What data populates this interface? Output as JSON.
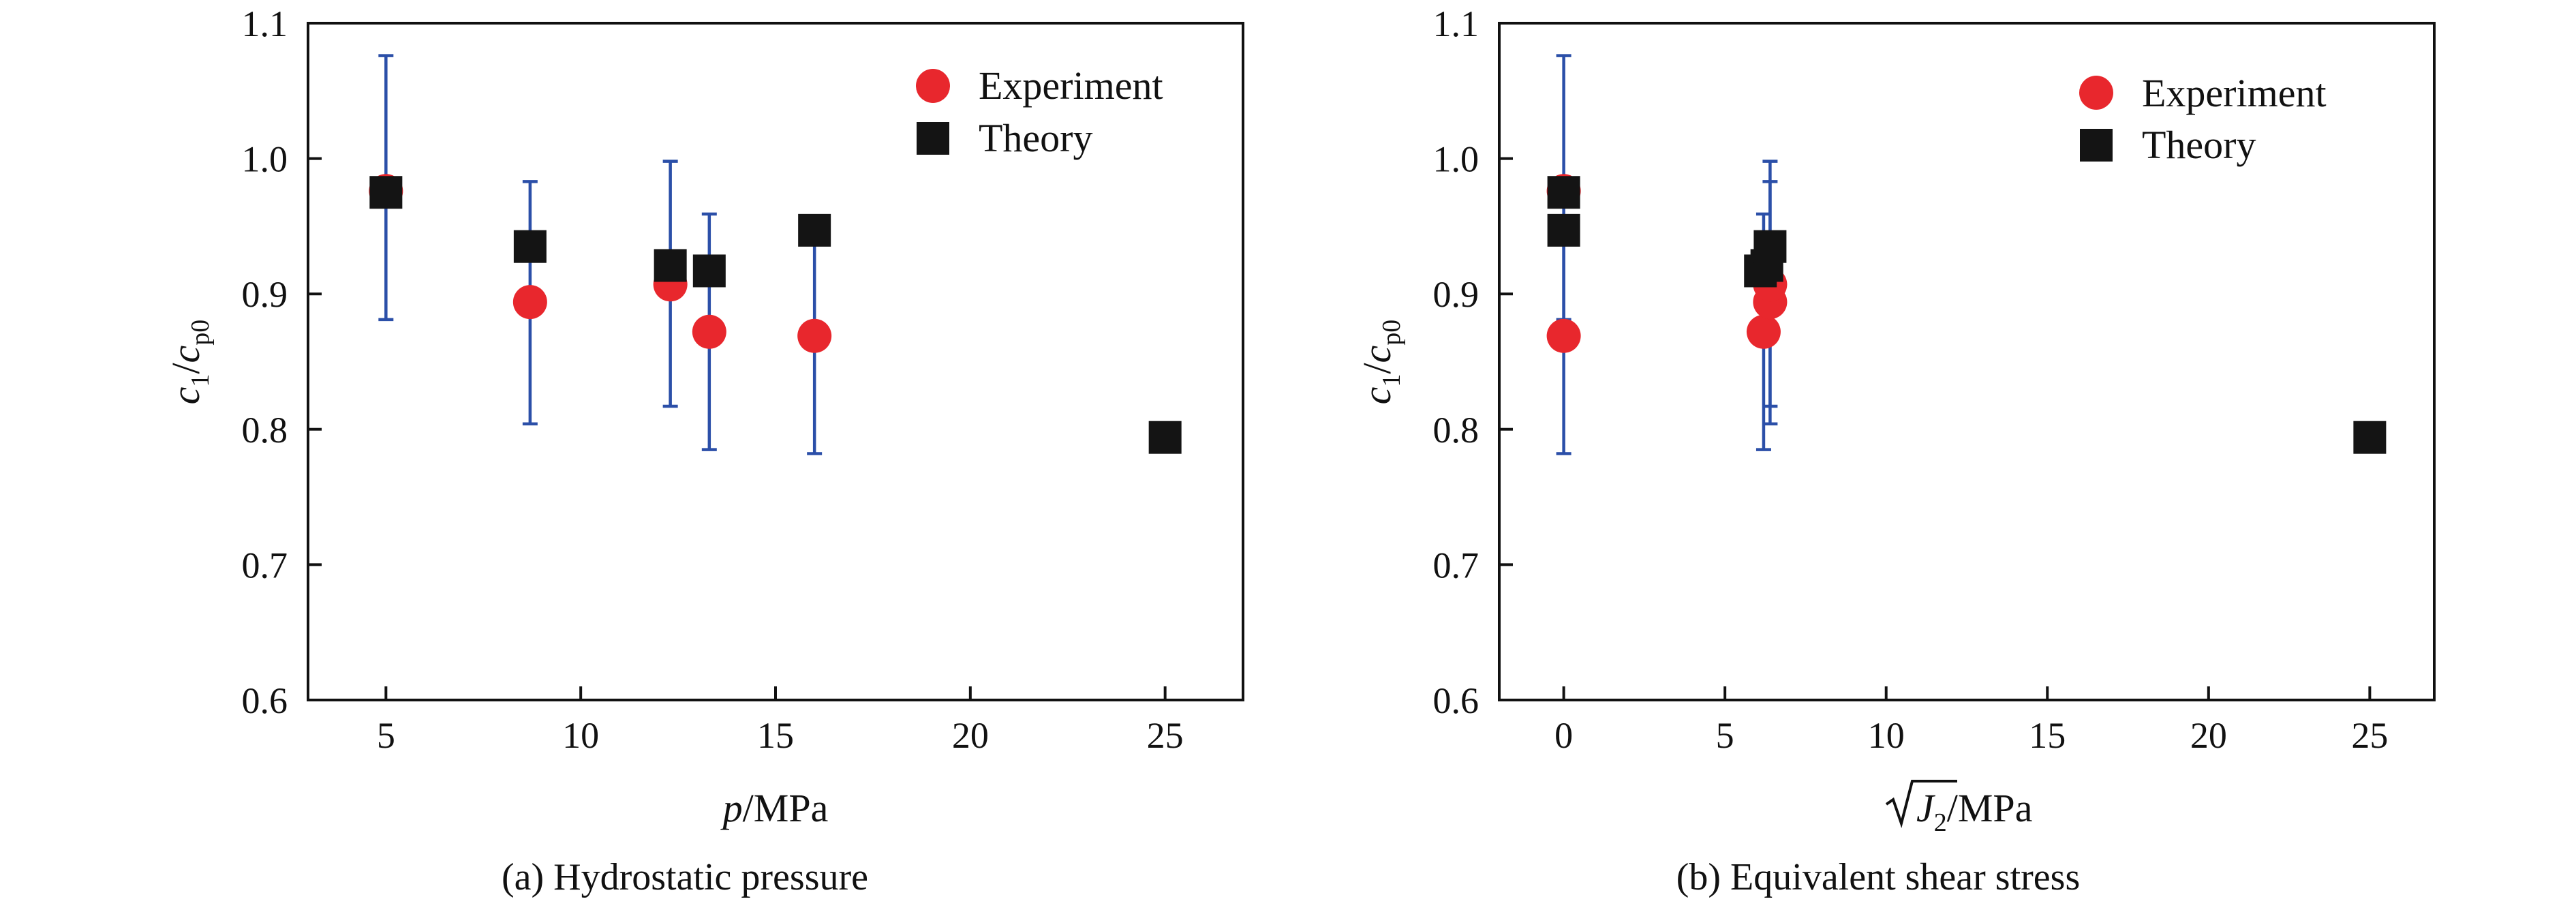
{
  "colors": {
    "experiment": "#e8272d",
    "theory": "#141414",
    "errorbar": "#2b4fa8",
    "axis": "#111111"
  },
  "chart_data": [
    {
      "type": "scatter",
      "caption": "(a) Hydrostatic pressure",
      "xlabel": {
        "italic": "p",
        "rest": "/MPa"
      },
      "ylabel": {
        "c": "c",
        "sub1": "1",
        "slash": "/",
        "sub2": "p0"
      },
      "xlim": [
        3,
        27
      ],
      "ylim": [
        0.6,
        1.1
      ],
      "xticks": [
        5,
        10,
        15,
        20,
        25
      ],
      "yticks": [
        0.6,
        0.7,
        0.8,
        0.9,
        1.0,
        1.1
      ],
      "ytick_labels": [
        "0.6",
        "0.7",
        "0.8",
        "0.9",
        "1.0",
        "1.1"
      ],
      "legend": {
        "position": "top-right",
        "entries": [
          "Experiment",
          "Theory"
        ]
      },
      "series": [
        {
          "name": "Experiment",
          "marker": "circle",
          "points": [
            {
              "x": 5.0,
              "y": 0.976,
              "err_low": 0.881,
              "err_high": 1.076
            },
            {
              "x": 8.7,
              "y": 0.894,
              "err_low": 0.804,
              "err_high": 0.983
            },
            {
              "x": 12.3,
              "y": 0.907,
              "err_low": 0.817,
              "err_high": 0.998
            },
            {
              "x": 13.3,
              "y": 0.872,
              "err_low": 0.785,
              "err_high": 0.959
            },
            {
              "x": 16.0,
              "y": 0.869,
              "err_low": 0.782,
              "err_high": 0.956
            }
          ]
        },
        {
          "name": "Theory",
          "marker": "square",
          "points": [
            {
              "x": 5.0,
              "y": 0.975
            },
            {
              "x": 8.7,
              "y": 0.935
            },
            {
              "x": 12.3,
              "y": 0.921
            },
            {
              "x": 13.3,
              "y": 0.917
            },
            {
              "x": 16.0,
              "y": 0.947
            },
            {
              "x": 25.0,
              "y": 0.794
            }
          ]
        }
      ]
    },
    {
      "type": "scatter",
      "caption": "(b) Equivalent shear stress",
      "xlabel": {
        "italic": "J",
        "sub": "2",
        "rest": "/MPa"
      },
      "ylabel": {
        "c": "c",
        "sub1": "1",
        "slash": "/",
        "sub2": "p0"
      },
      "xlim": [
        -2,
        27
      ],
      "ylim": [
        0.6,
        1.1
      ],
      "xticks": [
        0,
        5,
        10,
        15,
        20,
        25
      ],
      "yticks": [
        0.6,
        0.7,
        0.8,
        0.9,
        1.0,
        1.1
      ],
      "ytick_labels": [
        "0.6",
        "0.7",
        "0.8",
        "0.9",
        "1.0",
        "1.1"
      ],
      "legend": {
        "position": "top-right",
        "entries": [
          "Experiment",
          "Theory"
        ]
      },
      "series": [
        {
          "name": "Experiment",
          "marker": "circle",
          "points": [
            {
              "x": 0.0,
              "y": 0.976,
              "err_low": 0.881,
              "err_high": 1.076
            },
            {
              "x": 0.0,
              "y": 0.869,
              "err_low": 0.782,
              "err_high": 0.956
            },
            {
              "x": 6.2,
              "y": 0.872,
              "err_low": 0.785,
              "err_high": 0.959
            },
            {
              "x": 6.4,
              "y": 0.894,
              "err_low": 0.804,
              "err_high": 0.983
            },
            {
              "x": 6.4,
              "y": 0.907,
              "err_low": 0.817,
              "err_high": 0.998
            }
          ]
        },
        {
          "name": "Theory",
          "marker": "square",
          "points": [
            {
              "x": 0.0,
              "y": 0.975
            },
            {
              "x": 0.0,
              "y": 0.947
            },
            {
              "x": 6.1,
              "y": 0.917
            },
            {
              "x": 6.3,
              "y": 0.921
            },
            {
              "x": 6.4,
              "y": 0.935
            },
            {
              "x": 25.0,
              "y": 0.794
            }
          ]
        }
      ]
    }
  ]
}
